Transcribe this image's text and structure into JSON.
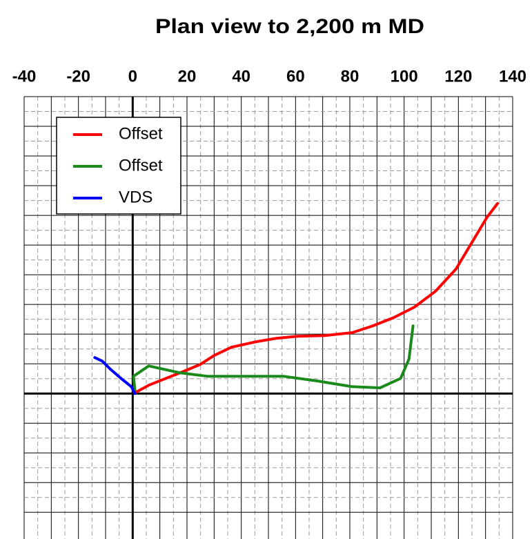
{
  "chart_data": {
    "type": "line",
    "title": "Plan view to 2,200 m MD",
    "xlim": [
      -40,
      140
    ],
    "xticks": [
      -40,
      -20,
      0,
      20,
      40,
      60,
      80,
      100,
      120,
      140
    ],
    "ylim": [
      -49,
      100
    ],
    "yticks": [
      -40,
      -30,
      -20,
      -10,
      0,
      10,
      20,
      30,
      40,
      50,
      60,
      70,
      80,
      90,
      100
    ],
    "ytick_labels_visible": false,
    "grid": true,
    "legend": "upper left",
    "series": [
      {
        "name": "Offset",
        "color": "#ff0000",
        "x": [
          1.3,
          5.9,
          12.2,
          18.6,
          24.9,
          30.0,
          36.4,
          45.3,
          52.9,
          60.6,
          70.7,
          80.9,
          88.5,
          96.2,
          103.8,
          111.5,
          119.1,
          126.7,
          130.5,
          134.4
        ],
        "values": [
          0.5,
          2.8,
          5.1,
          7.4,
          9.8,
          12.8,
          15.6,
          17.4,
          18.6,
          19.3,
          19.5,
          20.5,
          22.8,
          25.6,
          29.1,
          34.4,
          41.9,
          53.5,
          59.3,
          64.0
        ]
      },
      {
        "name": "Offset",
        "color": "#1a8a1a",
        "x": [
          0.8,
          0.3,
          5.9,
          17.3,
          27.5,
          42.7,
          55.5,
          68.2,
          80.9,
          91.1,
          98.7,
          101.8,
          103.3
        ],
        "values": [
          1.2,
          5.8,
          9.3,
          7.0,
          5.8,
          5.8,
          5.8,
          4.2,
          2.3,
          1.9,
          5.1,
          11.6,
          22.8
        ]
      },
      {
        "name": "VDS",
        "color": "#0000ff",
        "x": [
          -14.0,
          -11.2,
          -8.1,
          -4.3,
          -0.5,
          0.8
        ],
        "values": [
          12.1,
          10.9,
          8.1,
          5.1,
          2.3,
          0
        ]
      }
    ]
  }
}
